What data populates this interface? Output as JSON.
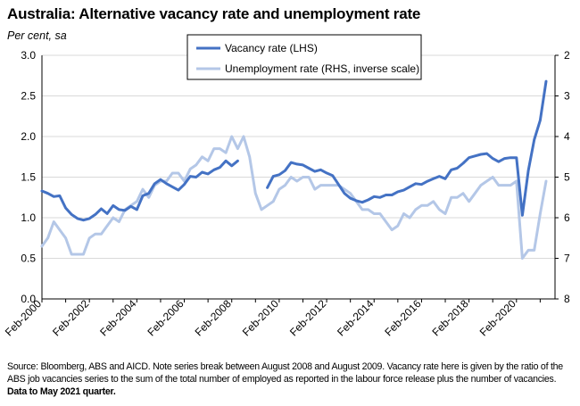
{
  "title": "Australia: Alternative vacancy rate and unemployment rate",
  "units": "Per cent, sa",
  "footnote": {
    "text": "Source: Bloomberg, ABS and AICD.  Note series break between August 2008 and August 2009. Vacancy rate here is given by the ratio of the ABS job vacancies series to the sum of the total number of employed as reported in the labour force release plus the number of vacancies. ",
    "bold": "Data to May 2021 quarter."
  },
  "chart_data": {
    "type": "line",
    "title": "Australia: Alternative vacancy rate and unemployment rate",
    "left_axis": {
      "ylim": [
        0.0,
        3.0
      ],
      "ticks": [
        "0.0",
        "0.5",
        "1.0",
        "1.5",
        "2.0",
        "2.5",
        "3.0"
      ]
    },
    "right_axis": {
      "ylim": [
        2,
        8
      ],
      "inverted": true,
      "ticks": [
        "2",
        "3",
        "4",
        "5",
        "6",
        "7",
        "8"
      ]
    },
    "x_axis": {
      "range": [
        2000.125,
        2021.75
      ],
      "tick_labels": [
        "Feb-2000",
        "Feb-2002",
        "Feb-2004",
        "Feb-2006",
        "Feb-2008",
        "Feb-2010",
        "Feb-2012",
        "Feb-2014",
        "Feb-2016",
        "Feb-2018",
        "Feb-2020"
      ],
      "tick_positions": [
        2000.125,
        2002.125,
        2004.125,
        2006.125,
        2008.125,
        2010.125,
        2012.125,
        2014.125,
        2016.125,
        2018.125,
        2020.125
      ]
    },
    "legend": {
      "placement": "top-center"
    },
    "series": [
      {
        "name": "Vacancy rate (LHS)",
        "axis": "left",
        "color": "#4472C4",
        "segments": [
          [
            [
              2000.125,
              1.33
            ],
            [
              2000.375,
              1.3
            ],
            [
              2000.625,
              1.26
            ],
            [
              2000.875,
              1.27
            ],
            [
              2001.125,
              1.12
            ],
            [
              2001.375,
              1.04
            ],
            [
              2001.625,
              0.99
            ],
            [
              2001.875,
              0.97
            ],
            [
              2002.125,
              0.99
            ],
            [
              2002.375,
              1.04
            ],
            [
              2002.625,
              1.11
            ],
            [
              2002.875,
              1.05
            ],
            [
              2003.125,
              1.15
            ],
            [
              2003.375,
              1.1
            ],
            [
              2003.625,
              1.09
            ],
            [
              2003.875,
              1.14
            ],
            [
              2004.125,
              1.1
            ],
            [
              2004.375,
              1.27
            ],
            [
              2004.625,
              1.3
            ],
            [
              2004.875,
              1.42
            ],
            [
              2005.125,
              1.47
            ],
            [
              2005.375,
              1.42
            ],
            [
              2005.625,
              1.38
            ],
            [
              2005.875,
              1.34
            ],
            [
              2006.125,
              1.41
            ],
            [
              2006.375,
              1.51
            ],
            [
              2006.625,
              1.5
            ],
            [
              2006.875,
              1.56
            ],
            [
              2007.125,
              1.54
            ],
            [
              2007.375,
              1.59
            ],
            [
              2007.625,
              1.62
            ],
            [
              2007.875,
              1.7
            ],
            [
              2008.125,
              1.64
            ],
            [
              2008.375,
              1.7
            ]
          ],
          [
            [
              2009.625,
              1.37
            ],
            [
              2009.875,
              1.51
            ],
            [
              2010.125,
              1.53
            ],
            [
              2010.375,
              1.58
            ],
            [
              2010.625,
              1.68
            ],
            [
              2010.875,
              1.66
            ],
            [
              2011.125,
              1.65
            ],
            [
              2011.375,
              1.61
            ],
            [
              2011.625,
              1.57
            ],
            [
              2011.875,
              1.59
            ],
            [
              2012.125,
              1.55
            ],
            [
              2012.375,
              1.52
            ],
            [
              2012.625,
              1.41
            ],
            [
              2012.875,
              1.3
            ],
            [
              2013.125,
              1.24
            ],
            [
              2013.375,
              1.21
            ],
            [
              2013.625,
              1.19
            ],
            [
              2013.875,
              1.22
            ],
            [
              2014.125,
              1.26
            ],
            [
              2014.375,
              1.25
            ],
            [
              2014.625,
              1.28
            ],
            [
              2014.875,
              1.28
            ],
            [
              2015.125,
              1.32
            ],
            [
              2015.375,
              1.34
            ],
            [
              2015.625,
              1.38
            ],
            [
              2015.875,
              1.42
            ],
            [
              2016.125,
              1.41
            ],
            [
              2016.375,
              1.45
            ],
            [
              2016.625,
              1.48
            ],
            [
              2016.875,
              1.51
            ],
            [
              2017.125,
              1.48
            ],
            [
              2017.375,
              1.59
            ],
            [
              2017.625,
              1.61
            ],
            [
              2017.875,
              1.67
            ],
            [
              2018.125,
              1.74
            ],
            [
              2018.375,
              1.76
            ],
            [
              2018.625,
              1.78
            ],
            [
              2018.875,
              1.79
            ],
            [
              2019.125,
              1.73
            ],
            [
              2019.375,
              1.69
            ],
            [
              2019.625,
              1.73
            ],
            [
              2019.875,
              1.74
            ],
            [
              2020.125,
              1.74
            ],
            [
              2020.375,
              1.03
            ],
            [
              2020.625,
              1.58
            ],
            [
              2020.875,
              1.96
            ],
            [
              2021.125,
              2.2
            ],
            [
              2021.375,
              2.68
            ]
          ]
        ]
      },
      {
        "name": "Unemployment rate (RHS, inverse scale)",
        "axis": "right",
        "color": "#B4C7E7",
        "segments": [
          [
            [
              2000.125,
              6.7
            ],
            [
              2000.375,
              6.5
            ],
            [
              2000.625,
              6.1
            ],
            [
              2000.875,
              6.3
            ],
            [
              2001.125,
              6.5
            ],
            [
              2001.375,
              6.9
            ],
            [
              2001.625,
              6.9
            ],
            [
              2001.875,
              6.9
            ],
            [
              2002.125,
              6.5
            ],
            [
              2002.375,
              6.4
            ],
            [
              2002.625,
              6.4
            ],
            [
              2002.875,
              6.2
            ],
            [
              2003.125,
              6.0
            ],
            [
              2003.375,
              6.1
            ],
            [
              2003.625,
              5.8
            ],
            [
              2003.875,
              5.7
            ],
            [
              2004.125,
              5.6
            ],
            [
              2004.375,
              5.3
            ],
            [
              2004.625,
              5.5
            ],
            [
              2004.875,
              5.2
            ],
            [
              2005.125,
              5.1
            ],
            [
              2005.375,
              5.1
            ],
            [
              2005.625,
              4.9
            ],
            [
              2005.875,
              4.9
            ],
            [
              2006.125,
              5.1
            ],
            [
              2006.375,
              4.8
            ],
            [
              2006.625,
              4.7
            ],
            [
              2006.875,
              4.5
            ],
            [
              2007.125,
              4.6
            ],
            [
              2007.375,
              4.3
            ],
            [
              2007.625,
              4.3
            ],
            [
              2007.875,
              4.4
            ],
            [
              2008.125,
              4.0
            ],
            [
              2008.375,
              4.3
            ],
            [
              2008.625,
              4.0
            ],
            [
              2008.875,
              4.5
            ],
            [
              2009.125,
              5.4
            ],
            [
              2009.375,
              5.8
            ],
            [
              2009.625,
              5.7
            ],
            [
              2009.875,
              5.6
            ],
            [
              2010.125,
              5.3
            ],
            [
              2010.375,
              5.2
            ],
            [
              2010.625,
              5.0
            ],
            [
              2010.875,
              5.1
            ],
            [
              2011.125,
              5.0
            ],
            [
              2011.375,
              5.0
            ],
            [
              2011.625,
              5.3
            ],
            [
              2011.875,
              5.2
            ],
            [
              2012.125,
              5.2
            ],
            [
              2012.375,
              5.2
            ],
            [
              2012.625,
              5.2
            ],
            [
              2012.875,
              5.3
            ],
            [
              2013.125,
              5.4
            ],
            [
              2013.375,
              5.6
            ],
            [
              2013.625,
              5.8
            ],
            [
              2013.875,
              5.8
            ],
            [
              2014.125,
              5.9
            ],
            [
              2014.375,
              5.9
            ],
            [
              2014.625,
              6.1
            ],
            [
              2014.875,
              6.3
            ],
            [
              2015.125,
              6.2
            ],
            [
              2015.375,
              5.9
            ],
            [
              2015.625,
              6.0
            ],
            [
              2015.875,
              5.8
            ],
            [
              2016.125,
              5.7
            ],
            [
              2016.375,
              5.7
            ],
            [
              2016.625,
              5.6
            ],
            [
              2016.875,
              5.8
            ],
            [
              2017.125,
              5.9
            ],
            [
              2017.375,
              5.5
            ],
            [
              2017.625,
              5.5
            ],
            [
              2017.875,
              5.4
            ],
            [
              2018.125,
              5.6
            ],
            [
              2018.375,
              5.4
            ],
            [
              2018.625,
              5.2
            ],
            [
              2018.875,
              5.1
            ],
            [
              2019.125,
              5.0
            ],
            [
              2019.375,
              5.2
            ],
            [
              2019.625,
              5.2
            ],
            [
              2019.875,
              5.2
            ],
            [
              2020.125,
              5.1
            ],
            [
              2020.375,
              7.0
            ],
            [
              2020.625,
              6.8
            ],
            [
              2020.875,
              6.8
            ],
            [
              2021.125,
              5.9
            ],
            [
              2021.375,
              5.1
            ]
          ]
        ]
      }
    ]
  }
}
